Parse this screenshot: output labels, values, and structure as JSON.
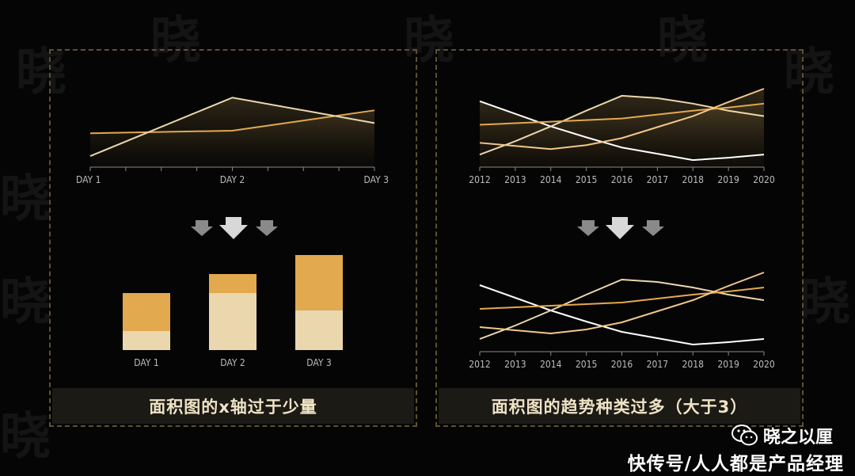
{
  "watermark_char": "晓",
  "colors": {
    "background": "#050505",
    "gold": "#e2a94e",
    "cream": "#ead7ad",
    "pale_gold": "#f2c78a",
    "white": "#ffffff",
    "border": "#5e5130",
    "caption_bg": "#1c1a15",
    "arrow": "#9a9a9a"
  },
  "left_panel": {
    "caption": "面积图的x轴过于少量"
  },
  "right_panel": {
    "caption": "面积图的趋势种类过多（大于3）"
  },
  "footer": {
    "account": "晓之以厘",
    "source": "快传号/人人都是产品经理",
    "icon": "wechat-icon"
  },
  "chart_data": [
    {
      "type": "area",
      "categories": [
        "DAY 1",
        "DAY 2",
        "DAY 3"
      ],
      "series": [
        {
          "values": [
            40,
            43,
            67
          ],
          "color": "#e2a94e"
        },
        {
          "values": [
            13,
            82,
            52
          ],
          "color": "#ead7ad"
        }
      ],
      "ylim": [
        0,
        100
      ],
      "grid": false,
      "legend": "none"
    },
    {
      "type": "bar",
      "stacked": true,
      "categories": [
        "DAY 1",
        "DAY 2",
        "DAY 3"
      ],
      "series": [
        {
          "values": [
            20,
            60,
            42
          ],
          "color": "#ead7ad"
        },
        {
          "values": [
            40,
            20,
            58
          ],
          "color": "#e2a94e"
        }
      ],
      "ylim": [
        0,
        100
      ],
      "grid": false,
      "legend": "none"
    },
    {
      "type": "area",
      "categories": [
        "2012",
        "2013",
        "2014",
        "2015",
        "2016",
        "2017",
        "2018",
        "2019",
        "2020"
      ],
      "series": [
        {
          "values": [
            84,
            68,
            52,
            38,
            25,
            17,
            9,
            12,
            16
          ],
          "color": "#ffffff"
        },
        {
          "values": [
            16,
            33,
            52,
            72,
            91,
            88,
            81,
            72,
            65
          ],
          "color": "#ead7ad"
        },
        {
          "values": [
            54,
            56,
            58,
            60,
            62,
            67,
            72,
            76,
            81
          ],
          "color": "#e2a94e"
        },
        {
          "values": [
            31,
            27,
            23,
            28,
            37,
            51,
            65,
            83,
            100
          ],
          "color": "#f2c78a"
        }
      ],
      "ylim": [
        0,
        100
      ],
      "grid": false,
      "legend": "none"
    },
    {
      "type": "line",
      "categories": [
        "2012",
        "2013",
        "2014",
        "2015",
        "2016",
        "2017",
        "2018",
        "2019",
        "2020"
      ],
      "series": [
        {
          "values": [
            84,
            68,
            52,
            38,
            25,
            17,
            9,
            12,
            16
          ],
          "color": "#ffffff"
        },
        {
          "values": [
            16,
            33,
            52,
            72,
            91,
            88,
            81,
            72,
            65
          ],
          "color": "#ead7ad"
        },
        {
          "values": [
            54,
            56,
            58,
            60,
            62,
            67,
            72,
            76,
            81
          ],
          "color": "#e2a94e"
        },
        {
          "values": [
            31,
            27,
            23,
            28,
            37,
            51,
            65,
            83,
            100
          ],
          "color": "#f2c78a"
        }
      ],
      "ylim": [
        0,
        100
      ],
      "grid": false,
      "legend": "none"
    }
  ]
}
